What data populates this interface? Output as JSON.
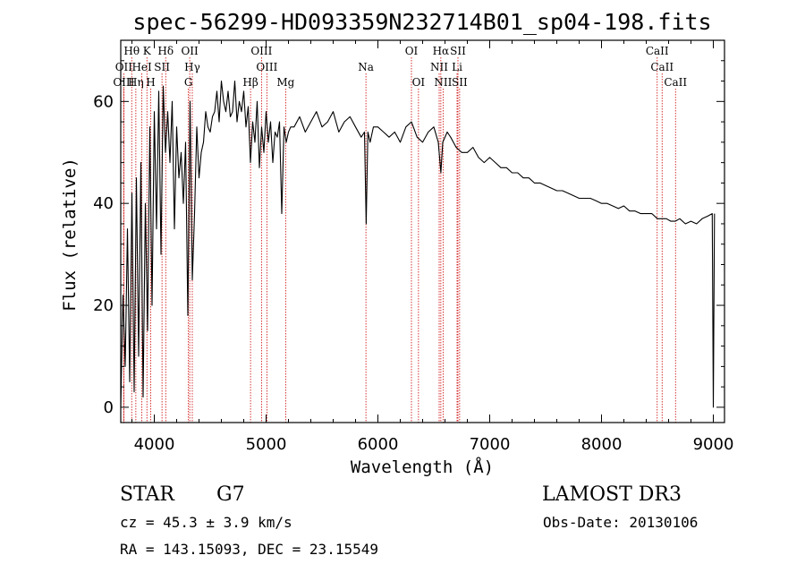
{
  "chart_data": {
    "type": "line",
    "title": "spec-56299-HD093359N232714B01_sp04-198.fits",
    "xlabel": "Wavelength (Å)",
    "ylabel": "Flux (relative)",
    "xlim": [
      3700,
      9100
    ],
    "ylim": [
      -3,
      72
    ],
    "xticks": [
      4000,
      5000,
      6000,
      7000,
      8000,
      9000
    ],
    "yticks": [
      0,
      20,
      40,
      60
    ],
    "series": [
      {
        "name": "flux",
        "x": [
          3700,
          3720,
          3740,
          3760,
          3780,
          3800,
          3820,
          3840,
          3860,
          3880,
          3900,
          3920,
          3940,
          3960,
          3980,
          4000,
          4020,
          4040,
          4060,
          4080,
          4100,
          4120,
          4140,
          4160,
          4180,
          4200,
          4220,
          4240,
          4260,
          4280,
          4300,
          4320,
          4340,
          4360,
          4380,
          4400,
          4420,
          4440,
          4460,
          4480,
          4500,
          4520,
          4540,
          4560,
          4580,
          4600,
          4620,
          4640,
          4660,
          4680,
          4700,
          4720,
          4740,
          4760,
          4780,
          4800,
          4820,
          4840,
          4860,
          4880,
          4900,
          4920,
          4940,
          4960,
          4980,
          5000,
          5020,
          5040,
          5060,
          5080,
          5100,
          5120,
          5140,
          5160,
          5180,
          5200,
          5220,
          5250,
          5300,
          5350,
          5400,
          5450,
          5500,
          5550,
          5600,
          5650,
          5700,
          5750,
          5800,
          5850,
          5880,
          5895,
          5910,
          5930,
          5960,
          6000,
          6050,
          6100,
          6150,
          6200,
          6250,
          6300,
          6350,
          6400,
          6450,
          6500,
          6540,
          6563,
          6580,
          6620,
          6650,
          6700,
          6750,
          6800,
          6850,
          6900,
          6950,
          7000,
          7050,
          7100,
          7150,
          7200,
          7250,
          7300,
          7350,
          7400,
          7450,
          7500,
          7550,
          7600,
          7650,
          7700,
          7750,
          7800,
          7850,
          7900,
          7950,
          8000,
          8050,
          8100,
          8150,
          8200,
          8250,
          8300,
          8350,
          8400,
          8450,
          8500,
          8540,
          8580,
          8620,
          8660,
          8700,
          8750,
          8800,
          8850,
          8900,
          8950,
          8990,
          9000,
          9010
        ],
        "values": [
          0,
          22,
          8,
          35,
          5,
          42,
          3,
          45,
          10,
          48,
          2,
          40,
          15,
          55,
          20,
          58,
          35,
          62,
          30,
          63,
          50,
          58,
          48,
          60,
          35,
          55,
          45,
          50,
          40,
          52,
          18,
          60,
          25,
          38,
          55,
          45,
          50,
          52,
          58,
          55,
          54,
          57,
          58,
          62,
          56,
          64,
          60,
          58,
          62,
          57,
          58,
          64,
          56,
          60,
          58,
          62,
          55,
          59,
          48,
          56,
          52,
          60,
          47,
          55,
          50,
          58,
          52,
          56,
          48,
          54,
          53,
          56,
          38,
          55,
          52,
          54,
          55,
          55,
          57,
          54,
          56,
          58,
          55,
          56,
          58,
          54,
          56,
          57,
          55,
          53,
          54,
          36,
          54,
          52,
          55,
          55,
          54,
          53,
          54,
          52,
          55,
          56,
          53,
          52,
          54,
          55,
          52,
          46,
          52,
          54,
          53,
          51,
          50,
          50,
          51,
          49,
          48,
          49,
          48,
          47,
          47,
          46,
          46,
          45,
          45,
          44,
          44,
          43.5,
          43,
          42.5,
          42.5,
          42,
          41.5,
          41,
          41,
          41,
          40.5,
          40,
          40,
          39.5,
          39,
          39.5,
          38.5,
          38.5,
          38,
          38,
          38,
          37,
          37,
          37,
          36.5,
          36.5,
          37,
          36,
          36.5,
          36,
          37,
          37.5,
          38,
          0,
          38
        ]
      }
    ],
    "spectral_lines": [
      {
        "label": "Hθ",
        "wavelength": 3798,
        "row": 0
      },
      {
        "label": "K",
        "wavelength": 3934,
        "row": 0
      },
      {
        "label": "Hδ",
        "wavelength": 4102,
        "row": 0
      },
      {
        "label": "OII",
        "wavelength": 4317,
        "row": 0
      },
      {
        "label": "OIII",
        "wavelength": 4959,
        "row": 0
      },
      {
        "label": "OI",
        "wavelength": 6300,
        "row": 0
      },
      {
        "label": "Hα",
        "wavelength": 6563,
        "row": 0
      },
      {
        "label": "SII",
        "wavelength": 6716,
        "row": 0
      },
      {
        "label": "CaII",
        "wavelength": 8498,
        "row": 0
      },
      {
        "label": "OII",
        "wavelength": 3727,
        "row": 1
      },
      {
        "label": "HeI",
        "wavelength": 3889,
        "row": 1
      },
      {
        "label": "SII",
        "wavelength": 4069,
        "row": 1
      },
      {
        "label": "Hγ",
        "wavelength": 4340,
        "row": 1
      },
      {
        "label": "OIII",
        "wavelength": 5007,
        "row": 1
      },
      {
        "label": "Na",
        "wavelength": 5893,
        "row": 1
      },
      {
        "label": "NII",
        "wavelength": 6548,
        "row": 1
      },
      {
        "label": "Li",
        "wavelength": 6708,
        "row": 1
      },
      {
        "label": "CaII",
        "wavelength": 8542,
        "row": 1
      },
      {
        "label": "OIII",
        "wavelength": 3727,
        "row": 2
      },
      {
        "label": "Hη",
        "wavelength": 3835,
        "row": 2
      },
      {
        "label": "H",
        "wavelength": 3968,
        "row": 2
      },
      {
        "label": "G",
        "wavelength": 4305,
        "row": 2
      },
      {
        "label": "Hβ",
        "wavelength": 4861,
        "row": 2
      },
      {
        "label": "Mg",
        "wavelength": 5175,
        "row": 2
      },
      {
        "label": "OI",
        "wavelength": 6363,
        "row": 2
      },
      {
        "label": "NII",
        "wavelength": 6583,
        "row": 2
      },
      {
        "label": "SII",
        "wavelength": 6731,
        "row": 2
      },
      {
        "label": "CaII",
        "wavelength": 8662,
        "row": 2
      }
    ],
    "colors": {
      "line_marker": "#cc0000",
      "trace": "#000000",
      "axes": "#000000"
    }
  },
  "info": {
    "object_class": "STAR",
    "subclass": "G7",
    "survey": "LAMOST DR3",
    "cz": "cz = 45.3 ± 3.9 km/s",
    "obs_date": "Obs-Date: 20130106",
    "coords": "RA = 143.15093, DEC =  23.15549"
  }
}
